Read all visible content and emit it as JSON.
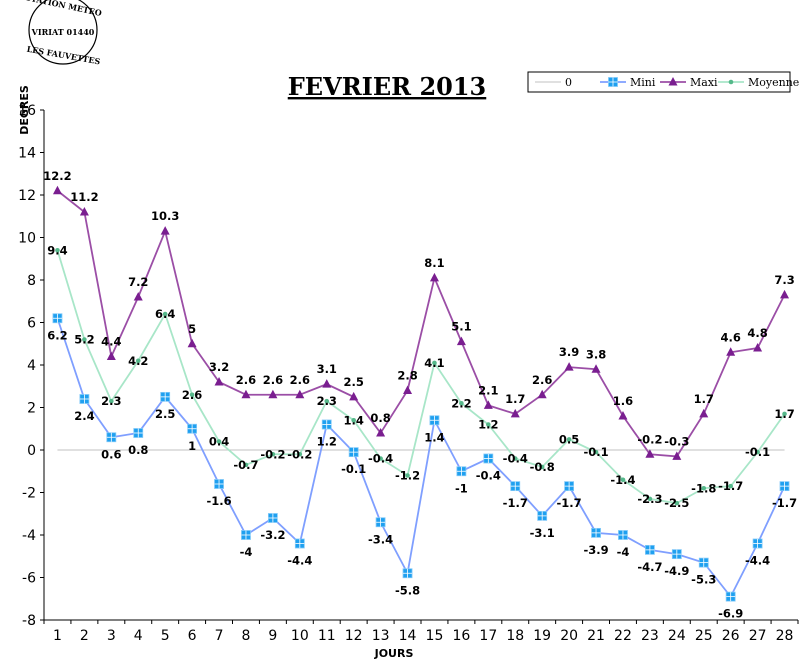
{
  "logo": {
    "line1": "STATION METEO",
    "line2": "VIRIAT 01440",
    "line3": "LES FAUVETTES"
  },
  "chart_data": {
    "type": "line",
    "title": "FEVRIER 2013",
    "xlabel": "JOURS",
    "ylabel": "DEGRES",
    "ylim": [
      -8,
      16
    ],
    "yticks": [
      -8,
      -6,
      -4,
      -2,
      0,
      2,
      4,
      6,
      8,
      10,
      12,
      14,
      16
    ],
    "x": [
      1,
      2,
      3,
      4,
      5,
      6,
      7,
      8,
      9,
      10,
      11,
      12,
      13,
      14,
      15,
      16,
      17,
      18,
      19,
      20,
      21,
      22,
      23,
      24,
      25,
      26,
      27,
      28
    ],
    "legend_position": "top-right",
    "series": [
      {
        "name": "0",
        "color": "#c0c0c0",
        "marker": "none",
        "values": [
          0,
          0,
          0,
          0,
          0,
          0,
          0,
          0,
          0,
          0,
          0,
          0,
          0,
          0,
          0,
          0,
          0,
          0,
          0,
          0,
          0,
          0,
          0,
          0,
          0,
          0,
          0,
          0
        ]
      },
      {
        "name": "Mini",
        "color": "#7f9fff",
        "marker_color": "#1fa0f0",
        "marker": "square",
        "values": [
          6.2,
          2.4,
          0.6,
          0.8,
          2.5,
          1,
          -1.6,
          -4,
          -3.2,
          -4.4,
          1.2,
          -0.1,
          -3.4,
          -5.8,
          1.4,
          -1,
          -0.4,
          -1.7,
          -3.1,
          -1.7,
          -3.9,
          -4,
          -4.7,
          -4.9,
          -5.3,
          -6.9,
          -4.4,
          -1.7
        ]
      },
      {
        "name": "Maxi",
        "color": "#9b4ea6",
        "marker_color": "#7a1e90",
        "marker": "triangle",
        "values": [
          12.2,
          11.2,
          4.4,
          7.2,
          10.3,
          5,
          3.2,
          2.6,
          2.6,
          2.6,
          3.1,
          2.5,
          0.8,
          2.8,
          8.1,
          5.1,
          2.1,
          1.7,
          2.6,
          3.9,
          3.8,
          1.6,
          -0.2,
          -0.3,
          1.7,
          4.6,
          4.8,
          7.3
        ]
      },
      {
        "name": "Moyenne",
        "color": "#a8e6c8",
        "marker_color": "#55b88a",
        "marker": "dot",
        "values": [
          9.4,
          5.2,
          2.3,
          4.2,
          6.4,
          2.6,
          0.4,
          -0.7,
          -0.2,
          -0.2,
          2.3,
          1.4,
          -0.4,
          -1.2,
          4.1,
          2.2,
          1.2,
          -0.4,
          -0.8,
          0.5,
          -0.1,
          -1.4,
          -2.3,
          -2.5,
          -1.8,
          -1.7,
          -0.1,
          1.7
        ]
      }
    ]
  }
}
